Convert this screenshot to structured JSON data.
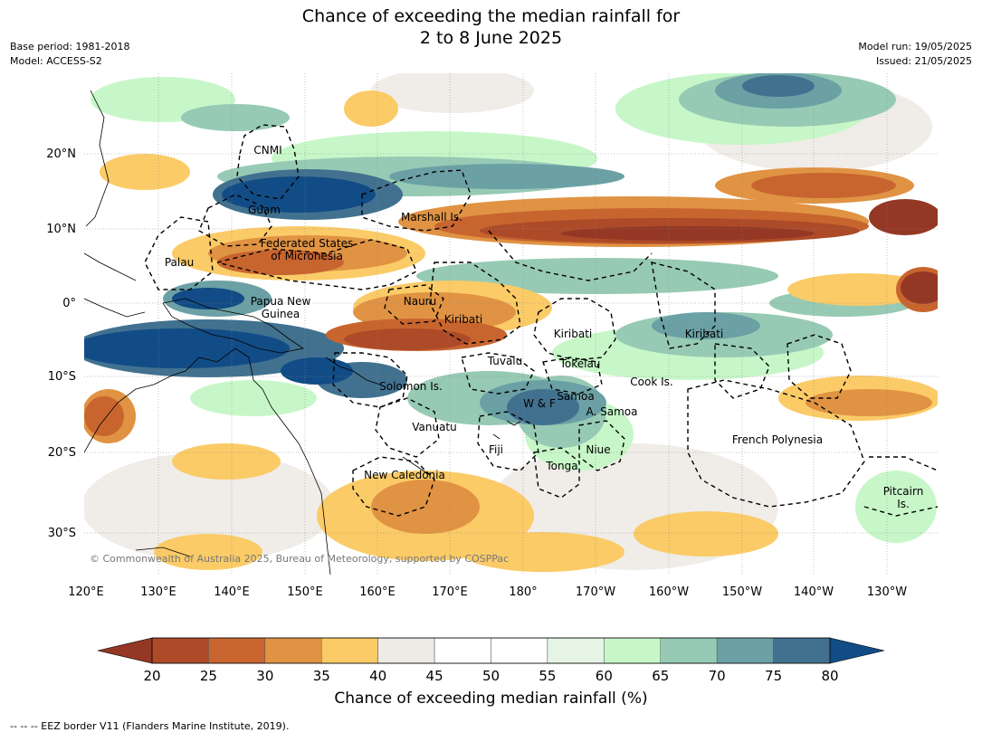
{
  "title": {
    "line1": "Chance of exceeding the median rainfall for",
    "line2": "2 to 8 June 2025"
  },
  "meta": {
    "base_period": "Base period: 1981-2018",
    "model": "Model: ACCESS-S2",
    "model_run": "Model run: 19/05/2025",
    "issued": "Issued: 21/05/2025"
  },
  "map": {
    "lon_labels": [
      "120°E",
      "130°E",
      "140°E",
      "150°E",
      "160°E",
      "170°E",
      "180°",
      "170°W",
      "160°W",
      "150°W",
      "140°W",
      "130°W"
    ],
    "lat_labels": [
      "20°N",
      "10°N",
      "0°",
      "10°S",
      "20°S",
      "30°S"
    ],
    "regions": [
      {
        "id": "cnmi",
        "lines": [
          "CNMI"
        ]
      },
      {
        "id": "guam",
        "lines": [
          "Guam"
        ]
      },
      {
        "id": "marshall",
        "lines": [
          "Marshall Is."
        ]
      },
      {
        "id": "fsm",
        "lines": [
          "Federated States",
          "of Micronesia"
        ]
      },
      {
        "id": "palau",
        "lines": [
          "Palau"
        ]
      },
      {
        "id": "png",
        "lines": [
          "Papua New",
          "Guinea"
        ]
      },
      {
        "id": "nauru",
        "lines": [
          "Nauru"
        ]
      },
      {
        "id": "kiribati-w",
        "lines": [
          "Kiribati"
        ]
      },
      {
        "id": "kiribati-c",
        "lines": [
          "Kiribati"
        ]
      },
      {
        "id": "kiribati-e",
        "lines": [
          "Kiribati"
        ]
      },
      {
        "id": "tuvalu",
        "lines": [
          "Tuvalu"
        ]
      },
      {
        "id": "tokelau",
        "lines": [
          "Tokelau"
        ]
      },
      {
        "id": "cook",
        "lines": [
          "Cook Is."
        ]
      },
      {
        "id": "solomon",
        "lines": [
          "Solomon Is."
        ]
      },
      {
        "id": "wf",
        "lines": [
          "W & F"
        ]
      },
      {
        "id": "samoa",
        "lines": [
          "Samoa"
        ]
      },
      {
        "id": "asamoa",
        "lines": [
          "A. Samoa"
        ]
      },
      {
        "id": "vanuatu",
        "lines": [
          "Vanuatu"
        ]
      },
      {
        "id": "fiji",
        "lines": [
          "Fiji"
        ]
      },
      {
        "id": "niue",
        "lines": [
          "Niue"
        ]
      },
      {
        "id": "tonga",
        "lines": [
          "Tonga"
        ]
      },
      {
        "id": "frpoly",
        "lines": [
          "French Polynesia"
        ]
      },
      {
        "id": "newcal",
        "lines": [
          "New Caledonia"
        ]
      },
      {
        "id": "pitcairn",
        "lines": [
          "Pitcairn",
          "Is."
        ]
      }
    ],
    "copyright": "© Commonwealth of Australia 2025, Bureau of Meteorology, supported by COSPPac"
  },
  "colorbar": {
    "ticks": [
      "20",
      "25",
      "30",
      "35",
      "40",
      "45",
      "50",
      "55",
      "60",
      "65",
      "70",
      "75",
      "80"
    ],
    "colors": [
      "#ad4a28",
      "#c8652f",
      "#e09343",
      "#fbcb67",
      "#eeeae5",
      "#ffffff",
      "#ffffff",
      "#e6f4e6",
      "#c7f7c8",
      "#97cab4",
      "#6ba0a5",
      "#41718f"
    ],
    "low_extend_color": "#943724",
    "high_extend_color": "#124c86",
    "label": "Chance of exceeding median rainfall (%)"
  },
  "footer": "--  --  -- EEZ border V11 (Flanders Marine Institute, 2019)."
}
